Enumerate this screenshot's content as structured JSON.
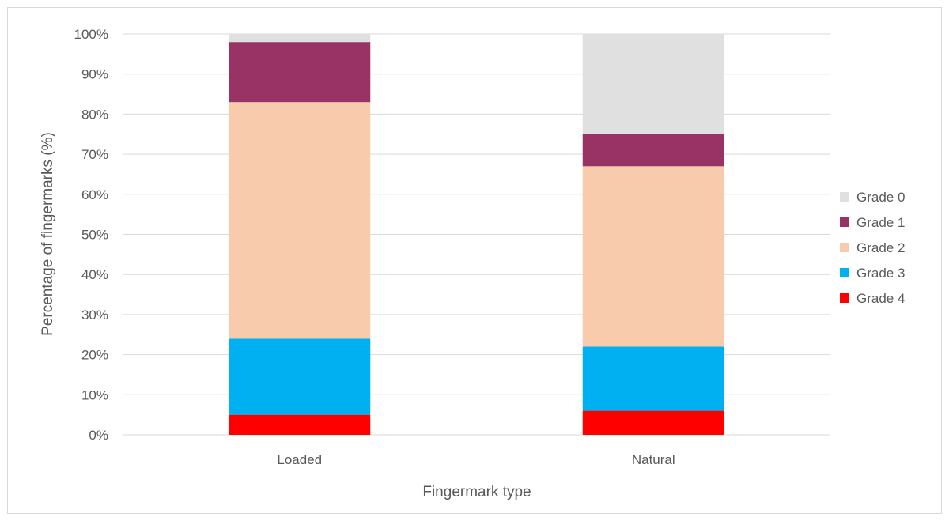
{
  "chart_data": {
    "type": "bar",
    "stacked": true,
    "percent_stacked": true,
    "categories": [
      "Loaded",
      "Natural"
    ],
    "series": [
      {
        "name": "Grade 4",
        "values": [
          5,
          6
        ],
        "color": "#ff0000"
      },
      {
        "name": "Grade 3",
        "values": [
          19,
          16
        ],
        "color": "#00b0f0"
      },
      {
        "name": "Grade 2",
        "values": [
          59,
          45
        ],
        "color": "#f8cbad"
      },
      {
        "name": "Grade 1",
        "values": [
          15,
          8
        ],
        "color": "#993366"
      },
      {
        "name": "Grade 0",
        "values": [
          2,
          25
        ],
        "color": "#e0e0e0"
      }
    ],
    "xlabel": "Fingermark type",
    "ylabel": "Percentage of fingermarks (%)",
    "ylim": [
      0,
      100
    ],
    "yticks": [
      "0%",
      "10%",
      "20%",
      "30%",
      "40%",
      "50%",
      "60%",
      "70%",
      "80%",
      "90%",
      "100%"
    ],
    "grid": true,
    "legend_position": "right",
    "legend_order": [
      "Grade 0",
      "Grade 1",
      "Grade 2",
      "Grade 3",
      "Grade 4"
    ]
  }
}
